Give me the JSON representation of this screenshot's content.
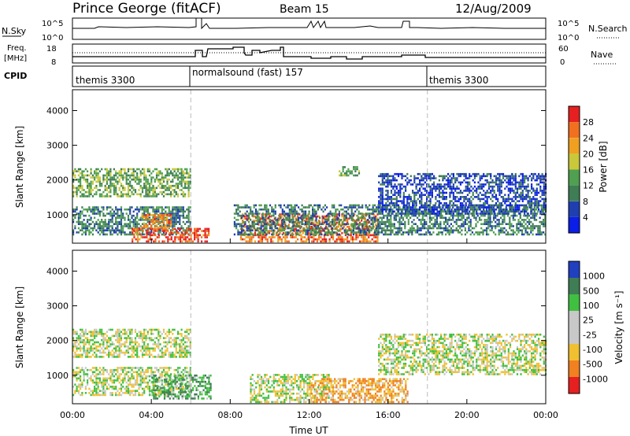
{
  "header": {
    "station": "Prince George (fitACF)",
    "beam": "Beam 15",
    "date": "12/Aug/2009"
  },
  "panels": {
    "nsky": {
      "label": "N.Sky",
      "ticks": [
        "10^5",
        "10^0"
      ],
      "right_ticks": [
        "10^5",
        "10^0"
      ],
      "right_label": "N.Search"
    },
    "freq": {
      "label_line1": "Freq.",
      "label_line2": "[MHz]",
      "ticks": [
        "18",
        "8"
      ],
      "right_ticks": [
        "60",
        "0"
      ],
      "right_label": "Nave"
    },
    "cpid": {
      "label": "CPID",
      "segments": [
        {
          "text": "themis 3300"
        },
        {
          "text": "normalsound (fast) 157"
        },
        {
          "text": "themis 3300"
        }
      ]
    },
    "power": {
      "ylabel": "Slant Range [km]",
      "yticks": [
        "4000",
        "3000",
        "2000",
        "1000"
      ],
      "colorbar": {
        "label": "Power [dB]",
        "ticks": [
          "28",
          "24",
          "20",
          "16",
          "12",
          "8",
          "4"
        ]
      }
    },
    "velocity": {
      "ylabel": "Slant Range [km]",
      "yticks": [
        "4000",
        "3000",
        "2000",
        "1000"
      ],
      "colorbar": {
        "label": "Velocity [m s⁻¹]",
        "ticks": [
          "1000",
          "500",
          "100",
          "25",
          "-25",
          "-100",
          "-500",
          "-1000"
        ]
      }
    }
  },
  "xaxis": {
    "label": "Time UT",
    "ticks": [
      "00:00",
      "04:00",
      "08:00",
      "12:00",
      "16:00",
      "20:00",
      "00:00"
    ]
  },
  "colors": {
    "power_scale": [
      "#0a1ee6",
      "#1f3fb0",
      "#3f7d55",
      "#4fa050",
      "#c8c83a",
      "#f0a020",
      "#f07020",
      "#e62020"
    ],
    "velocity_scale": [
      "#2040c0",
      "#3f7d55",
      "#40c040",
      "#c8c8c8",
      "#c8c8c8",
      "#f0c030",
      "#f08020",
      "#e62020"
    ]
  },
  "chart_data": [
    {
      "type": "heatmap",
      "panel": "power",
      "x_unit": "hours UT",
      "xlim": [
        0,
        24
      ],
      "ylim": [
        180,
        4600
      ],
      "ylabel": "Slant Range [km]",
      "zlabel": "Power [dB]",
      "zlim": [
        0,
        32
      ],
      "gap_hours": [
        [
          7.1,
          8.1
        ]
      ],
      "bands": [
        {
          "t0": 0.0,
          "t1": 6.0,
          "r0": 1500,
          "r1": 2300,
          "power": 14
        },
        {
          "t0": 0.0,
          "t1": 6.0,
          "r0": 400,
          "r1": 1200,
          "power": 10
        },
        {
          "t0": 3.0,
          "t1": 6.9,
          "r0": 200,
          "r1": 600,
          "power": 28
        },
        {
          "t0": 3.5,
          "t1": 5.0,
          "r0": 600,
          "r1": 1000,
          "power": 24
        },
        {
          "t0": 8.5,
          "t1": 15.5,
          "r0": 200,
          "r1": 1000,
          "power": 26
        },
        {
          "t0": 8.0,
          "t1": 24.0,
          "r0": 400,
          "r1": 1300,
          "power": 10
        },
        {
          "t0": 13.5,
          "t1": 14.5,
          "r0": 2100,
          "r1": 2400,
          "power": 14
        },
        {
          "t0": 15.5,
          "t1": 24.0,
          "r0": 1000,
          "r1": 2200,
          "power": 6
        }
      ]
    },
    {
      "type": "heatmap",
      "panel": "velocity",
      "x_unit": "hours UT",
      "xlim": [
        0,
        24
      ],
      "ylim": [
        180,
        4600
      ],
      "ylabel": "Slant Range [km]",
      "zlabel": "Velocity [m s⁻¹]",
      "zlim": [
        -1000,
        1000
      ],
      "gap_hours": [
        [
          7.1,
          8.1
        ]
      ],
      "bands": [
        {
          "t0": 0.0,
          "t1": 6.0,
          "r0": 1500,
          "r1": 2300,
          "velocity": 0
        },
        {
          "t0": 0.0,
          "t1": 6.0,
          "r0": 400,
          "r1": 1200,
          "velocity": 0
        },
        {
          "t0": 4.0,
          "t1": 7.0,
          "r0": 300,
          "r1": 1000,
          "velocity": 100
        },
        {
          "t0": 9.0,
          "t1": 13.0,
          "r0": 200,
          "r1": 1000,
          "velocity": 0
        },
        {
          "t0": 12.0,
          "t1": 17.0,
          "r0": 200,
          "r1": 900,
          "velocity": -100
        },
        {
          "t0": 15.5,
          "t1": 24.0,
          "r0": 1000,
          "r1": 2200,
          "velocity": 0
        }
      ]
    }
  ]
}
